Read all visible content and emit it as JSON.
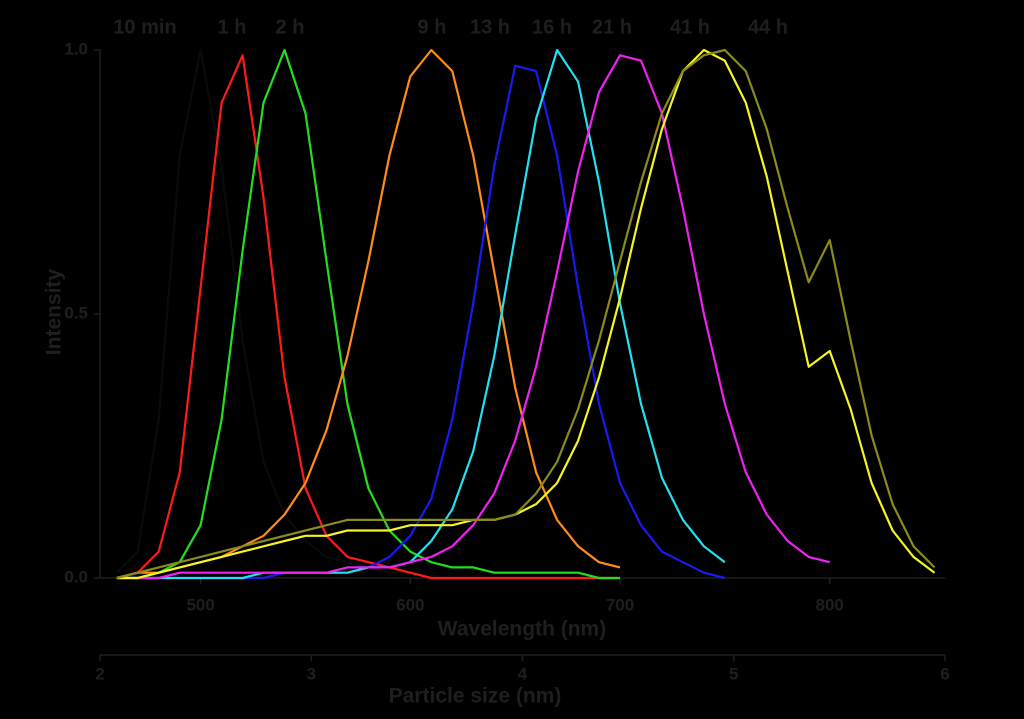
{
  "chart_data": {
    "type": "line",
    "xlabel": "Wavelength (nm)",
    "x2label": "Particle size (nm)",
    "ylabel": "Intensity",
    "x": [
      460,
      470,
      480,
      490,
      500,
      510,
      520,
      530,
      540,
      550,
      560,
      570,
      580,
      590,
      600,
      610,
      620,
      630,
      640,
      650,
      660,
      670,
      680,
      690,
      700,
      710,
      720,
      730,
      740,
      750,
      760,
      770,
      780,
      790,
      800,
      810,
      820,
      830,
      840,
      850
    ],
    "xlim": [
      452,
      855
    ],
    "xticks": [
      500,
      600,
      700,
      800
    ],
    "x2lim": [
      2,
      6
    ],
    "x2ticks": [
      2,
      3,
      4,
      5,
      6
    ],
    "ylim": [
      0,
      1
    ],
    "yticks": [
      {
        "value": 0,
        "label": "0.0"
      },
      {
        "value": 0.5,
        "label": "0.5"
      },
      {
        "value": 1,
        "label": "1.0"
      }
    ],
    "series": [
      {
        "name": "10 min",
        "color": "#0a0a0a",
        "values": [
          0.01,
          0.05,
          0.3,
          0.8,
          1.0,
          0.78,
          0.45,
          0.22,
          0.12,
          0.07,
          0.04,
          0.03,
          0.02,
          0.01,
          0.01,
          0,
          0,
          0,
          0,
          0,
          0,
          0,
          0,
          0,
          0,
          null,
          null,
          null,
          null,
          null,
          null,
          null,
          null,
          null,
          null,
          null,
          null,
          null,
          null,
          null
        ]
      },
      {
        "name": "1 h",
        "color": "#ff1a1a",
        "values": [
          0,
          0.01,
          0.05,
          0.2,
          0.55,
          0.9,
          0.99,
          0.72,
          0.38,
          0.17,
          0.08,
          0.04,
          0.03,
          0.02,
          0.01,
          0,
          0,
          0,
          0,
          0,
          0,
          0,
          0,
          0,
          0,
          null,
          null,
          null,
          null,
          null,
          null,
          null,
          null,
          null,
          null,
          null,
          null,
          null,
          null,
          null
        ]
      },
      {
        "name": "2 h",
        "color": "#22dd22",
        "values": [
          0,
          0,
          0.01,
          0.03,
          0.1,
          0.3,
          0.62,
          0.9,
          1.0,
          0.88,
          0.6,
          0.33,
          0.17,
          0.09,
          0.05,
          0.03,
          0.02,
          0.02,
          0.01,
          0.01,
          0.01,
          0.01,
          0.01,
          0,
          0,
          null,
          null,
          null,
          null,
          null,
          null,
          null,
          null,
          null,
          null,
          null,
          null,
          null,
          null,
          null
        ]
      },
      {
        "name": "9 h",
        "color": "#ff8c1a",
        "values": [
          0,
          0.01,
          0.01,
          0.02,
          0.03,
          0.04,
          0.06,
          0.08,
          0.12,
          0.18,
          0.28,
          0.42,
          0.6,
          0.8,
          0.95,
          1.0,
          0.96,
          0.8,
          0.58,
          0.36,
          0.2,
          0.11,
          0.06,
          0.03,
          0.02,
          null,
          null,
          null,
          null,
          null,
          null,
          null,
          null,
          null,
          null,
          null,
          null,
          null,
          null,
          null
        ]
      },
      {
        "name": "13 h",
        "color": "#1a1aee",
        "values": [
          0,
          0,
          0,
          0,
          0,
          0,
          0,
          0,
          0.01,
          0.01,
          0.01,
          0.01,
          0.02,
          0.04,
          0.08,
          0.15,
          0.3,
          0.52,
          0.78,
          0.97,
          0.96,
          0.8,
          0.55,
          0.33,
          0.18,
          0.1,
          0.05,
          0.03,
          0.01,
          0,
          null,
          null,
          null,
          null,
          null,
          null,
          null,
          null,
          null,
          null
        ]
      },
      {
        "name": "16 h",
        "color": "#22e0f0",
        "values": [
          0,
          0,
          0,
          0,
          0,
          0,
          0,
          0.01,
          0.01,
          0.01,
          0.01,
          0.01,
          0.02,
          0.02,
          0.03,
          0.07,
          0.13,
          0.24,
          0.42,
          0.65,
          0.87,
          1.0,
          0.94,
          0.75,
          0.52,
          0.33,
          0.19,
          0.11,
          0.06,
          0.03,
          null,
          null,
          null,
          null,
          null,
          null,
          null,
          null,
          null,
          null
        ]
      },
      {
        "name": "21 h",
        "color": "#ee22ee",
        "values": [
          0,
          0,
          0,
          0.01,
          0.01,
          0.01,
          0.01,
          0.01,
          0.01,
          0.01,
          0.01,
          0.02,
          0.02,
          0.02,
          0.03,
          0.04,
          0.06,
          0.1,
          0.16,
          0.26,
          0.4,
          0.58,
          0.77,
          0.92,
          0.99,
          0.98,
          0.88,
          0.7,
          0.5,
          0.33,
          0.2,
          0.12,
          0.07,
          0.04,
          0.03,
          null,
          null,
          null,
          null,
          null
        ]
      },
      {
        "name": "41 h",
        "color": "#f5f522",
        "values": [
          0,
          0,
          0.01,
          0.02,
          0.03,
          0.04,
          0.05,
          0.06,
          0.07,
          0.08,
          0.08,
          0.09,
          0.09,
          0.09,
          0.1,
          0.1,
          0.1,
          0.11,
          0.11,
          0.12,
          0.14,
          0.18,
          0.26,
          0.38,
          0.53,
          0.7,
          0.85,
          0.96,
          1.0,
          0.98,
          0.9,
          0.76,
          0.58,
          0.4,
          0.43,
          0.32,
          0.18,
          0.09,
          0.04,
          0.01
        ]
      },
      {
        "name": "44 h",
        "color": "#8a8a1e",
        "values": [
          0,
          0.01,
          0.02,
          0.03,
          0.04,
          0.05,
          0.06,
          0.07,
          0.08,
          0.09,
          0.1,
          0.11,
          0.11,
          0.11,
          0.11,
          0.11,
          0.11,
          0.11,
          0.11,
          0.12,
          0.16,
          0.22,
          0.32,
          0.45,
          0.6,
          0.75,
          0.88,
          0.96,
          0.99,
          1.0,
          0.96,
          0.85,
          0.7,
          0.56,
          0.64,
          0.45,
          0.27,
          0.14,
          0.06,
          0.02
        ]
      }
    ]
  }
}
